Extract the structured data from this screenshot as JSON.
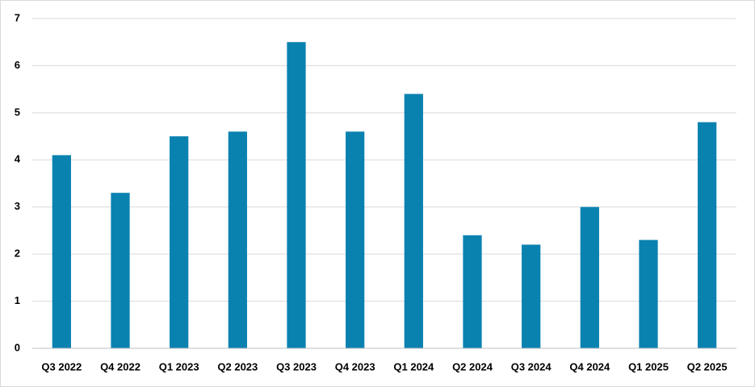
{
  "chart_data": {
    "type": "bar",
    "categories": [
      "Q3 2022",
      "Q4 2022",
      "Q1 2023",
      "Q2 2023",
      "Q3 2023",
      "Q4 2023",
      "Q1 2024",
      "Q2 2024",
      "Q3 2024",
      "Q4 2024",
      "Q1 2025",
      "Q2 2025"
    ],
    "values": [
      4.1,
      3.3,
      4.5,
      4.6,
      6.5,
      4.6,
      5.4,
      2.4,
      2.2,
      3.0,
      2.3,
      4.8
    ],
    "color": "#0a82b0",
    "ylim": [
      0,
      7
    ],
    "yticks": [
      0,
      1,
      2,
      3,
      4,
      5,
      6,
      7
    ],
    "grid": true
  }
}
